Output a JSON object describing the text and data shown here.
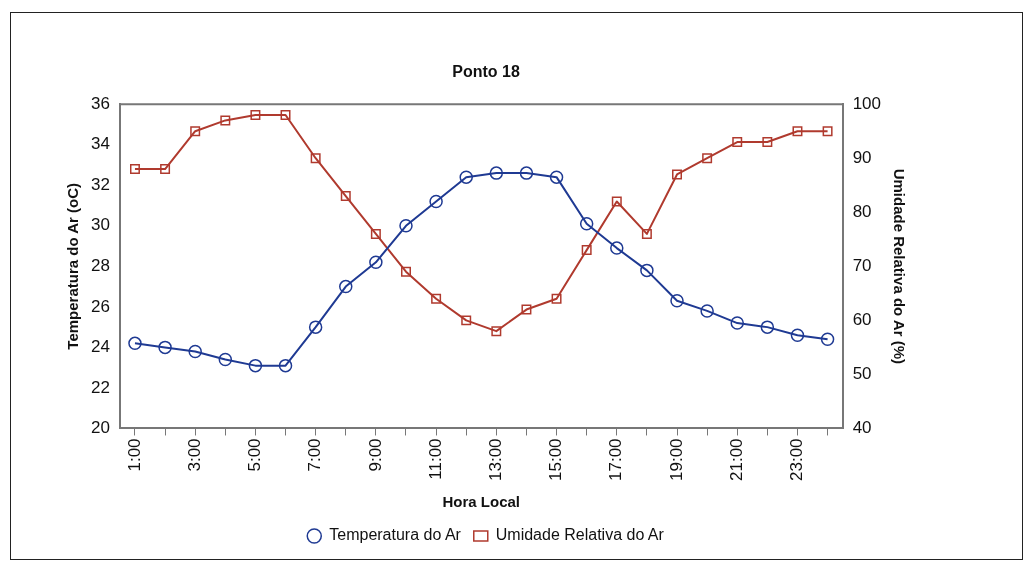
{
  "chart_data": {
    "type": "line",
    "title": "Ponto 18",
    "xlabel": "Hora Local",
    "ylabel": "Temperatura do Ar (oC)",
    "y2label": "Umidade Relativa do Ar (%)",
    "categories": [
      "1:00",
      null,
      "3:00",
      null,
      "5:00",
      null,
      "7:00",
      null,
      "9:00",
      null,
      "11:00",
      null,
      "13:00",
      null,
      "15:00",
      null,
      "17:00",
      null,
      "19:00",
      null,
      "21:00",
      null,
      "23:00",
      null
    ],
    "series": [
      {
        "name": "Temperatura do Ar",
        "color": "#1f3a93",
        "marker": "circle",
        "values": [
          24.2,
          24.0,
          23.8,
          23.4,
          23.1,
          23.1,
          25.0,
          27.0,
          28.2,
          30.0,
          31.2,
          32.4,
          32.6,
          32.6,
          32.4,
          30.1,
          28.9,
          27.8,
          26.3,
          25.8,
          25.2,
          25.0,
          24.6,
          24.4
        ]
      },
      {
        "name": "Umidade Relativa do Ar",
        "color": "#b03a2e",
        "marker": "square",
        "axis": "y2",
        "values": [
          88,
          88,
          95,
          97,
          98,
          98,
          90,
          83,
          76,
          69,
          64,
          60,
          58,
          62,
          64,
          73,
          82,
          76,
          87,
          90,
          93,
          93,
          95,
          95
        ]
      }
    ],
    "ylim": [
      20,
      36
    ],
    "yticks": [
      20,
      22,
      24,
      26,
      28,
      30,
      32,
      34,
      36
    ],
    "y2lim": [
      40,
      100
    ],
    "y2ticks": [
      40,
      50,
      60,
      70,
      80,
      90,
      100
    ],
    "grid": false,
    "legend": "bottom"
  }
}
